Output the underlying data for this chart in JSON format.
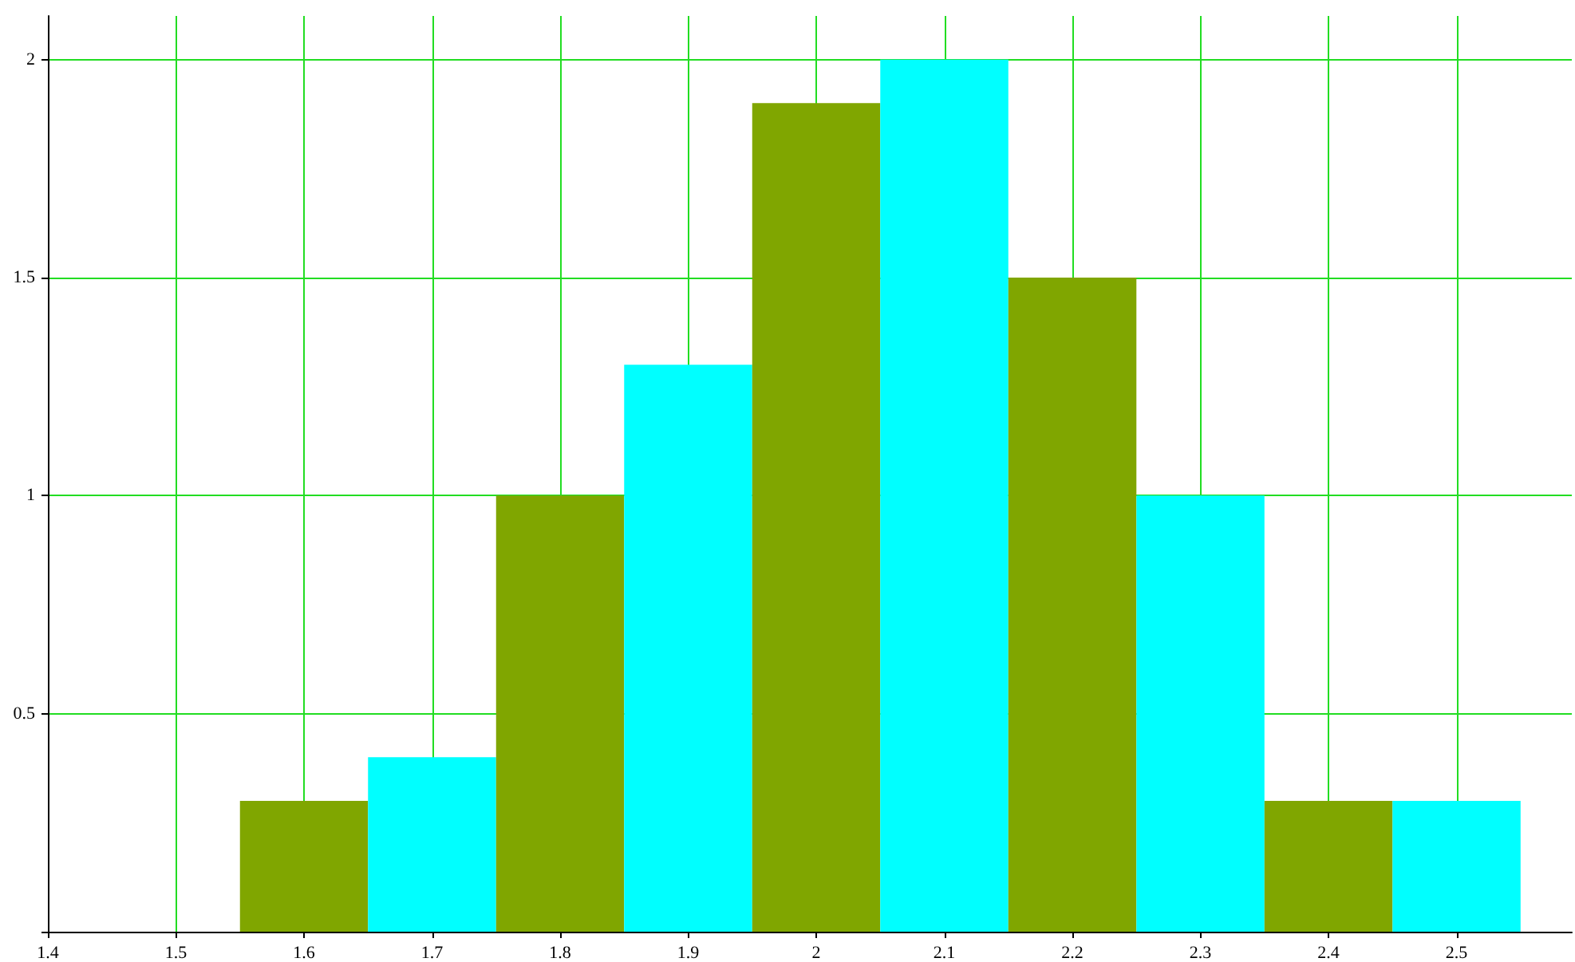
{
  "chart_data": {
    "type": "histogram",
    "bins": [
      1.55,
      1.65,
      1.75,
      1.85,
      1.95,
      2.05,
      2.15,
      2.25,
      2.35,
      2.45,
      2.55
    ],
    "values": [
      0.3,
      0.4,
      1.0,
      1.3,
      1.9,
      2.0,
      1.5,
      1.0,
      0.3,
      0.3
    ],
    "colors": [
      "#80a600",
      "#00ffff",
      "#80a600",
      "#00ffff",
      "#80a600",
      "#00ffff",
      "#80a600",
      "#00ffff",
      "#80a600",
      "#00ffff"
    ],
    "xlim": [
      1.4,
      2.59
    ],
    "ylim": [
      0,
      2.1
    ],
    "xticks": [
      1.4,
      1.5,
      1.6,
      1.7,
      1.8,
      1.9,
      2,
      2.1,
      2.2,
      2.3,
      2.4,
      2.5
    ],
    "yticks": [
      {
        "value": 0,
        "label": null
      },
      0.5,
      1,
      1.5,
      2
    ],
    "grid": true
  }
}
